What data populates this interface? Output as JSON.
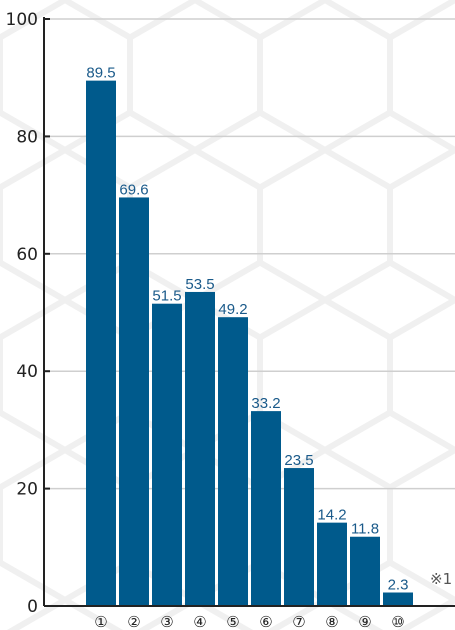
{
  "chart_data": {
    "type": "bar",
    "categories": [
      "①",
      "②",
      "③",
      "④",
      "⑤",
      "⑥",
      "⑦",
      "⑧",
      "⑨",
      "⑩"
    ],
    "values": [
      89.5,
      69.6,
      51.5,
      53.5,
      49.2,
      33.2,
      23.5,
      14.2,
      11.8,
      2.3
    ],
    "data_labels": [
      "89.5",
      "69.6",
      "51.5",
      "53.5",
      "49.2",
      "33.2",
      "23.5",
      "14.2",
      "11.8",
      "2.3"
    ],
    "y_ticks": [
      "0",
      "20",
      "40",
      "60",
      "80",
      "100"
    ],
    "ylim": [
      0,
      100
    ],
    "grid": true,
    "bar_color": "#005a8c",
    "note": "※1"
  }
}
